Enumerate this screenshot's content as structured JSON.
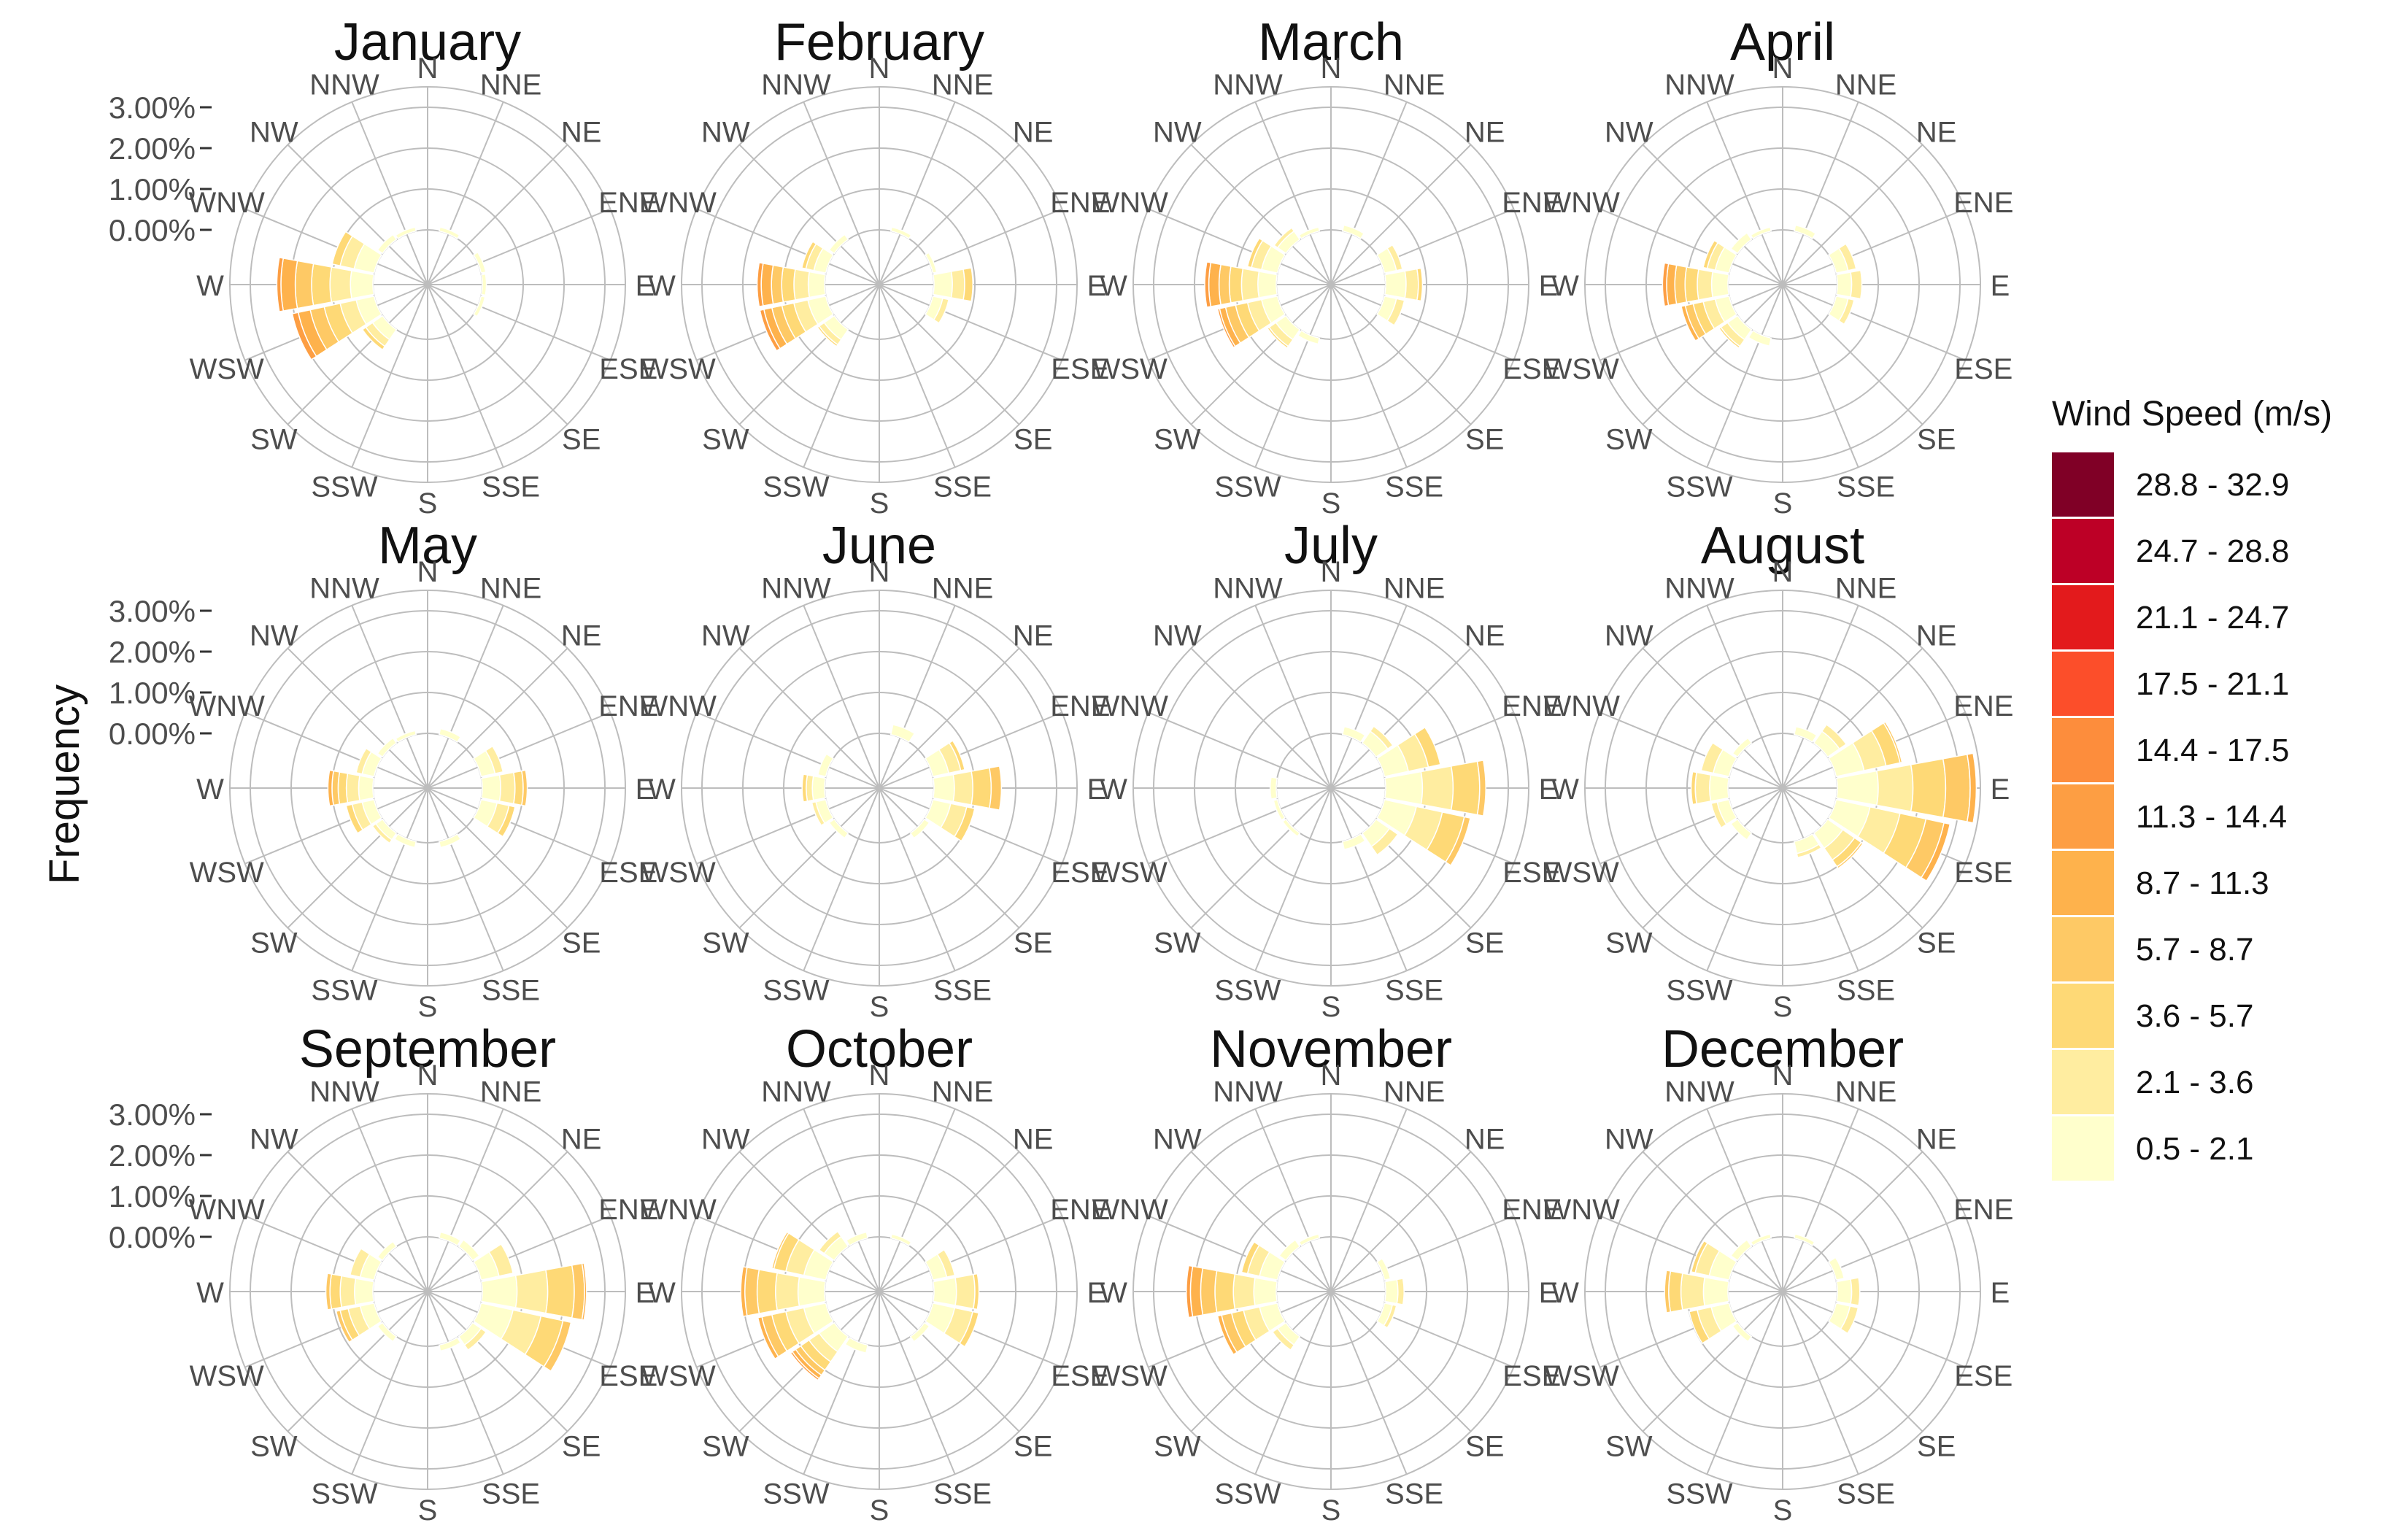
{
  "chart_data": {
    "type": "windrose",
    "facet_by": "month",
    "y_axis_title": "Frequency",
    "y_ticks": [
      "0.00%",
      "1.00%",
      "2.00%",
      "3.00%"
    ],
    "ylim": [
      0,
      3.5
    ],
    "y_units": "percent",
    "grid": true,
    "legend": {
      "title": "Wind Speed (m/s)",
      "placement": "right",
      "bins": [
        "28.8 - 32.9",
        "24.7 - 28.8",
        "21.1 - 24.7",
        "17.5 - 21.1",
        "14.4 - 17.5",
        "11.3 - 14.4",
        "8.7 - 11.3",
        "5.7 - 8.7",
        "3.6 - 5.7",
        "2.1 - 3.6",
        "0.5 - 2.1"
      ],
      "colors": [
        "#800026",
        "#bd0026",
        "#e31a1c",
        "#fc4e2a",
        "#fd8d3c",
        "#fd9e43",
        "#feb24c",
        "#fec965",
        "#fed976",
        "#ffeda0",
        "#ffffcc"
      ]
    },
    "directions": [
      "N",
      "NNE",
      "NE",
      "ENE",
      "E",
      "ESE",
      "SE",
      "SSE",
      "S",
      "SSW",
      "SW",
      "WSW",
      "W",
      "WNW",
      "NW",
      "NNW"
    ],
    "bin_order_note": "values per direction listed from lowest speed bin (0.5 - 2.1) upward",
    "panels": [
      {
        "title": "January",
        "directions": {
          "NNE": [
            0.1
          ],
          "ENE": [
            0.12
          ],
          "E": [
            0.1
          ],
          "ESE": [
            0.1
          ],
          "SW": [
            0.3,
            0.2,
            0.1
          ],
          "WSW": [
            0.45,
            0.4,
            0.4,
            0.35,
            0.3,
            0.15
          ],
          "W": [
            0.55,
            0.5,
            0.45,
            0.4,
            0.35,
            0.1
          ],
          "WNW": [
            0.5,
            0.35,
            0.2
          ],
          "NW": [
            0.15
          ],
          "NNW": [
            0.1
          ]
        }
      },
      {
        "title": "February",
        "directions": {
          "NNE": [
            0.1
          ],
          "ENE": [
            0.1
          ],
          "E": [
            0.45,
            0.3,
            0.2
          ],
          "ESE": [
            0.25,
            0.15
          ],
          "SW": [
            0.3,
            0.15,
            0.05
          ],
          "WSW": [
            0.45,
            0.35,
            0.3,
            0.25,
            0.2,
            0.1
          ],
          "W": [
            0.4,
            0.35,
            0.3,
            0.25,
            0.25,
            0.1
          ],
          "WNW": [
            0.3,
            0.2,
            0.1
          ],
          "NW": [
            0.15
          ]
        }
      },
      {
        "title": "March",
        "directions": {
          "NNE": [
            0.15
          ],
          "ENE": [
            0.3,
            0.15
          ],
          "E": [
            0.5,
            0.3,
            0.1
          ],
          "ESE": [
            0.3,
            0.2
          ],
          "SSW": [
            0.15
          ],
          "SW": [
            0.3,
            0.2,
            0.05
          ],
          "WSW": [
            0.4,
            0.35,
            0.3,
            0.25,
            0.15,
            0.05
          ],
          "W": [
            0.45,
            0.4,
            0.3,
            0.25,
            0.25,
            0.1
          ],
          "WNW": [
            0.4,
            0.25,
            0.1
          ],
          "NW": [
            0.25,
            0.1
          ],
          "NNW": [
            0.1
          ]
        }
      },
      {
        "title": "April",
        "directions": {
          "NNE": [
            0.15
          ],
          "ENE": [
            0.3,
            0.2
          ],
          "E": [
            0.35,
            0.25
          ],
          "ESE": [
            0.3,
            0.15
          ],
          "SSW": [
            0.2
          ],
          "SW": [
            0.3,
            0.2,
            0.05
          ],
          "WSW": [
            0.35,
            0.3,
            0.25,
            0.2,
            0.1
          ],
          "W": [
            0.4,
            0.35,
            0.3,
            0.25,
            0.2,
            0.1
          ],
          "WNW": [
            0.35,
            0.2,
            0.1
          ],
          "NW": [
            0.2
          ],
          "NNW": [
            0.1
          ]
        }
      },
      {
        "title": "May",
        "directions": {
          "NNE": [
            0.15
          ],
          "ENE": [
            0.35,
            0.2
          ],
          "E": [
            0.45,
            0.35,
            0.2,
            0.1
          ],
          "ESE": [
            0.4,
            0.3,
            0.15
          ],
          "SSE": [
            0.15
          ],
          "SSW": [
            0.15
          ],
          "SW": [
            0.2,
            0.1
          ],
          "WSW": [
            0.3,
            0.25,
            0.15
          ],
          "W": [
            0.35,
            0.3,
            0.2,
            0.15,
            0.1
          ],
          "WNW": [
            0.3,
            0.15
          ],
          "NW": [
            0.15
          ],
          "NNW": [
            0.1
          ]
        }
      },
      {
        "title": "June",
        "directions": {
          "NNE": [
            0.25
          ],
          "ENE": [
            0.4,
            0.3,
            0.1
          ],
          "E": [
            0.5,
            0.45,
            0.45,
            0.25
          ],
          "ESE": [
            0.45,
            0.4,
            0.2
          ],
          "SE": [
            0.15
          ],
          "SW": [
            0.15
          ],
          "WSW": [
            0.25,
            0.1
          ],
          "W": [
            0.3,
            0.15,
            0.1
          ],
          "WNW": [
            0.2
          ]
        }
      },
      {
        "title": "July",
        "directions": {
          "NNE": [
            0.2
          ],
          "NE": [
            0.35,
            0.15
          ],
          "ENE": [
            0.6,
            0.5,
            0.3
          ],
          "E": [
            0.9,
            0.75,
            0.65,
            0.15
          ],
          "ESE": [
            0.8,
            0.65,
            0.55,
            0.15
          ],
          "SE": [
            0.4,
            0.25
          ],
          "SSE": [
            0.2
          ],
          "SW": [
            0.1
          ],
          "WSW": [
            0.1
          ],
          "W": [
            0.15
          ]
        }
      },
      {
        "title": "August",
        "directions": {
          "NNE": [
            0.2
          ],
          "NE": [
            0.35,
            0.2
          ],
          "ENE": [
            0.7,
            0.55,
            0.35,
            0.05
          ],
          "E": [
            1.0,
            0.85,
            0.8,
            0.6,
            0.15
          ],
          "ESE": [
            0.85,
            0.75,
            0.65,
            0.45,
            0.15
          ],
          "SE": [
            0.45,
            0.35,
            0.2,
            0.05
          ],
          "SSE": [
            0.3,
            0.1
          ],
          "SW": [
            0.2
          ],
          "WSW": [
            0.3,
            0.15
          ],
          "W": [
            0.45,
            0.35,
            0.1
          ],
          "WNW": [
            0.4,
            0.3
          ],
          "NW": [
            0.15
          ]
        }
      },
      {
        "title": "September",
        "directions": {
          "NNE": [
            0.15
          ],
          "NE": [
            0.2
          ],
          "ENE": [
            0.45,
            0.35
          ],
          "E": [
            0.85,
            0.75,
            0.65,
            0.25,
            0.05
          ],
          "ESE": [
            0.8,
            0.7,
            0.55,
            0.2
          ],
          "SE": [
            0.25,
            0.15
          ],
          "SSE": [
            0.15
          ],
          "SW": [
            0.15
          ],
          "WSW": [
            0.35,
            0.3,
            0.2,
            0.1
          ],
          "W": [
            0.45,
            0.35,
            0.25,
            0.1
          ],
          "WNW": [
            0.35,
            0.25
          ],
          "NW": [
            0.15
          ]
        }
      },
      {
        "title": "October",
        "directions": {
          "NNE": [
            0.1
          ],
          "ENE": [
            0.35,
            0.2
          ],
          "E": [
            0.55,
            0.45,
            0.1
          ],
          "ESE": [
            0.55,
            0.45,
            0.15
          ],
          "SE": [
            0.15
          ],
          "SSW": [
            0.2
          ],
          "SW": [
            0.45,
            0.3,
            0.25,
            0.15,
            0.1,
            0.05
          ],
          "WSW": [
            0.55,
            0.45,
            0.35,
            0.25,
            0.1
          ],
          "W": [
            0.65,
            0.55,
            0.45,
            0.3,
            0.1
          ],
          "WNW": [
            0.55,
            0.45,
            0.3,
            0.05
          ],
          "NW": [
            0.3,
            0.15
          ],
          "NNW": [
            0.15
          ]
        }
      },
      {
        "title": "November",
        "directions": {
          "ENE": [
            0.15
          ],
          "E": [
            0.3,
            0.15
          ],
          "ESE": [
            0.2,
            0.1
          ],
          "SW": [
            0.25,
            0.15
          ],
          "WSW": [
            0.45,
            0.4,
            0.3,
            0.25,
            0.1
          ],
          "W": [
            0.55,
            0.5,
            0.45,
            0.35,
            0.25,
            0.1
          ],
          "WNW": [
            0.45,
            0.3,
            0.15
          ],
          "NW": [
            0.2
          ],
          "NNW": [
            0.1
          ]
        }
      },
      {
        "title": "December",
        "directions": {
          "NNE": [
            0.1
          ],
          "ENE": [
            0.2
          ],
          "E": [
            0.35,
            0.2
          ],
          "ESE": [
            0.35,
            0.2
          ],
          "SW": [
            0.15
          ],
          "WSW": [
            0.45,
            0.35,
            0.2
          ],
          "W": [
            0.6,
            0.55,
            0.3,
            0.1
          ],
          "WNW": [
            0.5,
            0.35,
            0.1
          ],
          "NW": [
            0.2
          ],
          "NNW": [
            0.1
          ]
        }
      }
    ]
  }
}
